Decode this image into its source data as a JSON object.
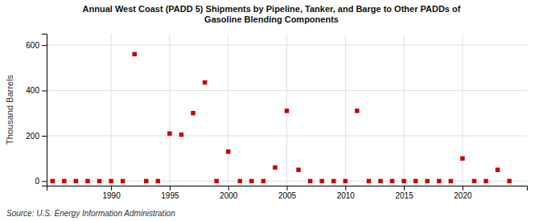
{
  "chart_data": {
    "type": "scatter",
    "title": "Annual West Coast (PADD 5) Shipments by Pipeline, Tanker, and Barge to Other PADDs of\nGasoline Blending Components",
    "ylabel": "Thousand Barrels",
    "annotations": [
      "Source: U.S. Energy Information Administration"
    ],
    "color": "#cc0000",
    "marker": "square",
    "grid": true,
    "xlim": [
      1984.5,
      2025.5
    ],
    "ylim": [
      -20,
      650
    ],
    "xticks": [
      1990,
      1995,
      2000,
      2005,
      2010,
      2015,
      2020
    ],
    "yticks": [
      0,
      200,
      400,
      600
    ],
    "x": [
      1985,
      1986,
      1987,
      1988,
      1989,
      1990,
      1991,
      1992,
      1993,
      1994,
      1995,
      1996,
      1997,
      1998,
      1999,
      2000,
      2001,
      2002,
      2003,
      2004,
      2005,
      2006,
      2007,
      2008,
      2009,
      2010,
      2011,
      2012,
      2013,
      2014,
      2015,
      2016,
      2017,
      2018,
      2019,
      2020,
      2021,
      2022,
      2023,
      2024
    ],
    "values": [
      0,
      0,
      0,
      0,
      0,
      0,
      0,
      560,
      0,
      0,
      210,
      205,
      300,
      435,
      0,
      130,
      0,
      0,
      0,
      60,
      310,
      50,
      0,
      0,
      0,
      0,
      310,
      0,
      0,
      0,
      0,
      0,
      0,
      0,
      0,
      100,
      0,
      0,
      50,
      0
    ]
  }
}
